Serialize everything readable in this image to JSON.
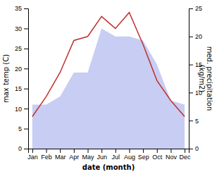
{
  "chart_data": {
    "type": "line",
    "xlabel": "date (month)",
    "ylabel": "max temp (C)",
    "y2label": "med. precipitation\n(kg/m2)",
    "categories": [
      "Jan",
      "Feb",
      "Mar",
      "Apr",
      "May",
      "Jun",
      "Jul",
      "Aug",
      "Sep",
      "Oct",
      "Nov",
      "Dec"
    ],
    "series": [
      {
        "type": "area",
        "color": "#b0b8ee",
        "values": [
          11,
          11,
          13,
          19,
          19,
          30,
          28,
          28,
          27,
          21,
          12,
          11
        ]
      },
      {
        "type": "line",
        "color": "#c03030",
        "values": [
          8,
          13,
          19,
          27,
          28,
          33,
          30,
          34,
          26,
          17,
          12,
          8
        ]
      }
    ],
    "ylim": [
      0,
      35
    ],
    "yticks": [
      0,
      5,
      10,
      15,
      20,
      25,
      30,
      35
    ],
    "y2lim": [
      0,
      25
    ],
    "y2ticks": [
      0,
      5,
      10,
      15,
      20,
      25
    ],
    "grid": false
  }
}
